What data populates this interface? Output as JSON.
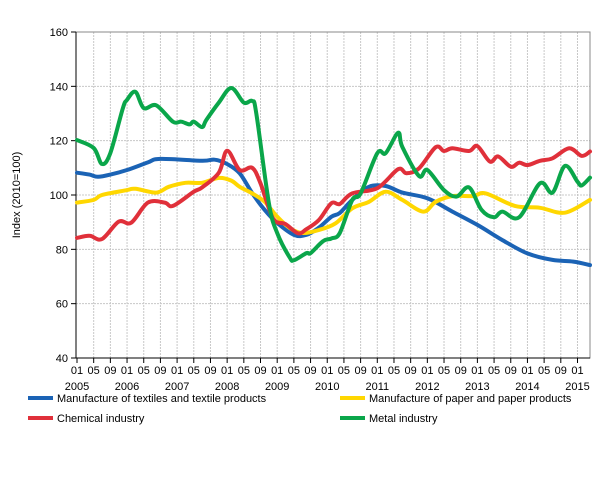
{
  "chart_data": {
    "type": "line",
    "title": "",
    "xlabel": "",
    "ylabel": "Index (2010=100)",
    "ylim": [
      40,
      160
    ],
    "yticks": [
      40,
      60,
      80,
      100,
      120,
      140,
      160
    ],
    "xlim": [
      "2005-01",
      "2015-04"
    ],
    "x_tick_month_labels": [
      "01",
      "05",
      "09"
    ],
    "x_year_labels": [
      "2005",
      "2006",
      "2007",
      "2008",
      "2009",
      "2010",
      "2011",
      "2012",
      "2013",
      "2014",
      "2015"
    ],
    "grid": true,
    "legend_position": "bottom",
    "series": [
      {
        "name": "Manufacture of textiles and textile products",
        "color": "#1b63b5",
        "points": [
          [
            "2005-01",
            108.2
          ],
          [
            "2005-04",
            107.5
          ],
          [
            "2005-06",
            106.7
          ],
          [
            "2005-09",
            107.5
          ],
          [
            "2006-01",
            109.2
          ],
          [
            "2006-06",
            112
          ],
          [
            "2006-09",
            113.3
          ],
          [
            "2007-07",
            112.6
          ],
          [
            "2007-10",
            113
          ],
          [
            "2008-01",
            111.4
          ],
          [
            "2008-04",
            108
          ],
          [
            "2008-07",
            100.7
          ],
          [
            "2008-10",
            94.5
          ],
          [
            "2009-01",
            89.7
          ],
          [
            "2009-05",
            85.3
          ],
          [
            "2009-08",
            85.3
          ],
          [
            "2009-11",
            88
          ],
          [
            "2010-02",
            92
          ],
          [
            "2010-04",
            93.4
          ],
          [
            "2010-07",
            98.2
          ],
          [
            "2010-11",
            103
          ],
          [
            "2011-03",
            103.3
          ],
          [
            "2011-07",
            100.9
          ],
          [
            "2012-01",
            98.8
          ],
          [
            "2012-07",
            93.9
          ],
          [
            "2013-01",
            89
          ],
          [
            "2013-07",
            83.4
          ],
          [
            "2014-01",
            78.5
          ],
          [
            "2014-07",
            76.1
          ],
          [
            "2014-12",
            75.5
          ],
          [
            "2015-04",
            74.2
          ]
        ]
      },
      {
        "name": "Manufacture of paper and paper products",
        "color": "#ffd700",
        "points": [
          [
            "2005-01",
            97.2
          ],
          [
            "2005-05",
            98.2
          ],
          [
            "2005-07",
            100
          ],
          [
            "2006-01",
            101.8
          ],
          [
            "2006-03",
            102.3
          ],
          [
            "2006-08",
            100.9
          ],
          [
            "2006-11",
            103
          ],
          [
            "2007-03",
            104.5
          ],
          [
            "2007-07",
            104.5
          ],
          [
            "2007-11",
            106.3
          ],
          [
            "2008-02",
            105.3
          ],
          [
            "2008-04",
            103
          ],
          [
            "2008-07",
            100.6
          ],
          [
            "2008-10",
            97.5
          ],
          [
            "2009-01",
            92
          ],
          [
            "2009-04",
            87.9
          ],
          [
            "2009-07",
            86
          ],
          [
            "2009-11",
            87.1
          ],
          [
            "2010-03",
            89.6
          ],
          [
            "2010-07",
            95.1
          ],
          [
            "2010-11",
            97.5
          ],
          [
            "2011-03",
            101.2
          ],
          [
            "2011-07",
            98.2
          ],
          [
            "2011-12",
            93.9
          ],
          [
            "2012-03",
            97.5
          ],
          [
            "2012-07",
            99.6
          ],
          [
            "2012-12",
            99.6
          ],
          [
            "2013-03",
            100.6
          ],
          [
            "2013-10",
            96
          ],
          [
            "2014-04",
            95.3
          ],
          [
            "2014-10",
            93.5
          ],
          [
            "2015-04",
            98.2
          ]
        ]
      },
      {
        "name": "Chemical industry",
        "color": "#e0303a",
        "points": [
          [
            "2005-01",
            84.2
          ],
          [
            "2005-04",
            85
          ],
          [
            "2005-07",
            83.8
          ],
          [
            "2005-11",
            90.2
          ],
          [
            "2006-02",
            89.8
          ],
          [
            "2006-06",
            97.2
          ],
          [
            "2006-10",
            97.2
          ],
          [
            "2006-12",
            96
          ],
          [
            "2007-05",
            101.2
          ],
          [
            "2007-07",
            102.8
          ],
          [
            "2007-11",
            108.2
          ],
          [
            "2008-01",
            116.3
          ],
          [
            "2008-04",
            109.2
          ],
          [
            "2008-07",
            110
          ],
          [
            "2008-09",
            104.3
          ],
          [
            "2008-12",
            91.4
          ],
          [
            "2009-03",
            89.3
          ],
          [
            "2009-06",
            85.9
          ],
          [
            "2009-08",
            87.4
          ],
          [
            "2009-11",
            90.8
          ],
          [
            "2010-02",
            97
          ],
          [
            "2010-04",
            96.7
          ],
          [
            "2010-07",
            100.6
          ],
          [
            "2011-01",
            102.5
          ],
          [
            "2011-06",
            109.5
          ],
          [
            "2011-08",
            108
          ],
          [
            "2011-11",
            109.8
          ],
          [
            "2012-03",
            117.6
          ],
          [
            "2012-05",
            116.2
          ],
          [
            "2012-07",
            117.2
          ],
          [
            "2012-11",
            116.2
          ],
          [
            "2013-01",
            118
          ],
          [
            "2013-04",
            112.3
          ],
          [
            "2013-06",
            114.2
          ],
          [
            "2013-09",
            110.4
          ],
          [
            "2013-11",
            111.9
          ],
          [
            "2014-01",
            111
          ],
          [
            "2014-04",
            112.6
          ],
          [
            "2014-07",
            113.5
          ],
          [
            "2014-11",
            117.2
          ],
          [
            "2015-02",
            114.4
          ],
          [
            "2015-04",
            116
          ]
        ]
      },
      {
        "name": "Metal industry",
        "color": "#0aa64a",
        "points": [
          [
            "2005-01",
            120.2
          ],
          [
            "2005-05",
            117.3
          ],
          [
            "2005-07",
            111.4
          ],
          [
            "2005-09",
            115.5
          ],
          [
            "2005-12",
            132
          ],
          [
            "2006-01",
            135
          ],
          [
            "2006-03",
            138
          ],
          [
            "2006-05",
            132
          ],
          [
            "2006-08",
            133
          ],
          [
            "2006-12",
            127
          ],
          [
            "2007-02",
            127
          ],
          [
            "2007-04",
            126
          ],
          [
            "2007-05",
            127
          ],
          [
            "2007-07",
            125
          ],
          [
            "2007-08",
            127.6
          ],
          [
            "2007-11",
            134
          ],
          [
            "2008-02",
            139.4
          ],
          [
            "2008-05",
            134
          ],
          [
            "2008-07",
            134.6
          ],
          [
            "2008-08",
            130
          ],
          [
            "2008-11",
            97
          ],
          [
            "2009-01",
            86
          ],
          [
            "2009-04",
            77
          ],
          [
            "2009-05",
            76
          ],
          [
            "2009-08",
            78.6
          ],
          [
            "2009-09",
            78.6
          ],
          [
            "2009-12",
            83
          ],
          [
            "2010-02",
            84
          ],
          [
            "2010-04",
            86
          ],
          [
            "2010-07",
            98.2
          ],
          [
            "2010-09",
            100.6
          ],
          [
            "2011-01",
            115.4
          ],
          [
            "2011-03",
            115.4
          ],
          [
            "2011-06",
            122.9
          ],
          [
            "2011-07",
            117.7
          ],
          [
            "2011-11",
            107
          ],
          [
            "2012-01",
            109.2
          ],
          [
            "2012-05",
            101.8
          ],
          [
            "2012-08",
            99.4
          ],
          [
            "2012-11",
            102.8
          ],
          [
            "2013-02",
            94.5
          ],
          [
            "2013-05",
            91.8
          ],
          [
            "2013-07",
            93.9
          ],
          [
            "2013-11",
            91.8
          ],
          [
            "2014-04",
            104.3
          ],
          [
            "2014-07",
            100.9
          ],
          [
            "2014-10",
            110.7
          ],
          [
            "2015-01",
            104.9
          ],
          [
            "2015-02",
            103.5
          ],
          [
            "2015-04",
            106.4
          ]
        ]
      }
    ]
  }
}
